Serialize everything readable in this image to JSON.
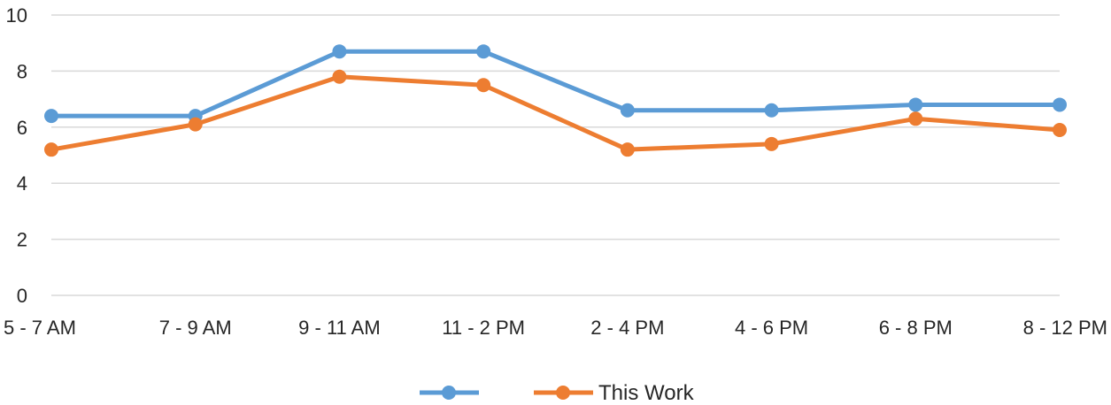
{
  "chart_data": {
    "type": "line",
    "categories": [
      "5 - 7 AM",
      "7 - 9 AM",
      "9 - 11 AM",
      "11 - 2 PM",
      "2 - 4 PM",
      "4 - 6 PM",
      "6 - 8 PM",
      "8 - 12 PM"
    ],
    "series": [
      {
        "values": [
          6.4,
          6.4,
          8.7,
          8.7,
          6.6,
          6.6,
          6.8,
          6.8
        ],
        "color": "#5b9bd5"
      },
      {
        "name": "This Work",
        "values": [
          5.2,
          6.1,
          7.8,
          7.5,
          5.2,
          5.4,
          6.3,
          5.9
        ],
        "color": "#ed7d31"
      }
    ],
    "ylim": [
      0,
      10
    ],
    "yticks": [
      0,
      2,
      4,
      6,
      8,
      10
    ],
    "grid": true,
    "legend": "bottom"
  }
}
